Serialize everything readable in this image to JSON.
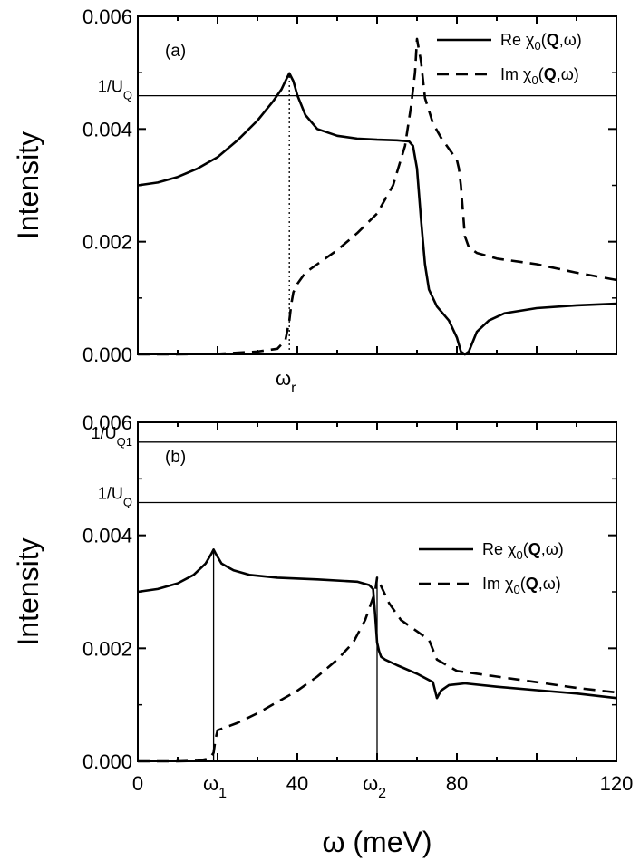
{
  "chart_data": [
    {
      "type": "line",
      "panel_label": "(a)",
      "xlabel": "",
      "ylabel": "Intensity",
      "xlim": [
        0,
        120
      ],
      "ylim": [
        0,
        0.006
      ],
      "yticks": [
        "0.000",
        "0.002",
        "0.004",
        "0.006"
      ],
      "legend": {
        "placement": "top-right",
        "entries": [
          "Re χ0(Q,ω)",
          "Im χ0(Q,ω)"
        ]
      },
      "hlines": [
        {
          "label": "1/U_Q",
          "label_text": "1/UQ",
          "y": 0.00459
        }
      ],
      "vlines": [
        {
          "x": 38,
          "style": "dotted",
          "y_to": 0.00499
        }
      ],
      "x_annotations": [
        {
          "text": "ωr",
          "x": 38
        }
      ],
      "series": [
        {
          "name": "Re χ0(Q,ω)",
          "style": "solid",
          "x": [
            0,
            5,
            10,
            15,
            20,
            25,
            30,
            34,
            36,
            37,
            38,
            39,
            40,
            42,
            45,
            50,
            55,
            60,
            65,
            68,
            69,
            70,
            71,
            72,
            73,
            75,
            78,
            80,
            81,
            82,
            83,
            85,
            88,
            92,
            100,
            110,
            120
          ],
          "y": [
            0.003,
            0.00305,
            0.00315,
            0.0033,
            0.0035,
            0.0038,
            0.00415,
            0.0045,
            0.0047,
            0.00485,
            0.00499,
            0.00485,
            0.0046,
            0.00425,
            0.004,
            0.00388,
            0.00383,
            0.00381,
            0.0038,
            0.00378,
            0.0037,
            0.0033,
            0.0024,
            0.0016,
            0.00115,
            0.00085,
            0.0006,
            0.0003,
            5e-05,
            0.0,
            5e-05,
            0.0004,
            0.0006,
            0.00073,
            0.00082,
            0.00087,
            0.0009
          ]
        },
        {
          "name": "Im χ0(Q,ω)",
          "style": "dashed",
          "x": [
            0,
            10,
            20,
            30,
            35,
            37,
            38,
            38.5,
            39,
            40,
            42,
            45,
            50,
            55,
            60,
            64,
            67,
            68.5,
            69.5,
            70,
            71,
            72,
            74,
            76,
            78,
            80,
            80.5,
            81,
            82,
            83,
            85,
            90,
            100,
            110,
            120
          ],
          "y": [
            0.0,
            0.0,
            1e-05,
            5e-05,
            0.0001,
            0.00025,
            0.0006,
            0.0009,
            0.0011,
            0.00125,
            0.00145,
            0.0016,
            0.00185,
            0.00215,
            0.0025,
            0.003,
            0.0037,
            0.0044,
            0.005,
            0.0056,
            0.0052,
            0.00455,
            0.0041,
            0.00385,
            0.00365,
            0.00345,
            0.0033,
            0.003,
            0.0021,
            0.0019,
            0.0018,
            0.0017,
            0.0016,
            0.00145,
            0.00132
          ]
        }
      ]
    },
    {
      "type": "line",
      "panel_label": "(b)",
      "xlabel": "ω (meV)",
      "ylabel": "Intensity",
      "xlim": [
        0,
        120
      ],
      "ylim": [
        0,
        0.006
      ],
      "yticks": [
        "0.000",
        "0.002",
        "0.004",
        "0.006"
      ],
      "xticks": [
        {
          "text": "0",
          "x": 0
        },
        {
          "text": "ω1",
          "x": 20
        },
        {
          "text": "40",
          "x": 40
        },
        {
          "text": "ω2",
          "x": 60
        },
        {
          "text": "80",
          "x": 80
        },
        {
          "text": "120",
          "x": 120
        }
      ],
      "legend": {
        "placement": "center-right",
        "entries": [
          "Re χ0(Q,ω)",
          "Im χ0(Q,ω)"
        ]
      },
      "hlines": [
        {
          "label": "1/U_Q1",
          "label_text": "1/UQ1",
          "y": 0.00565
        },
        {
          "label": "1/U_Q",
          "label_text": "1/UQ",
          "y": 0.00458
        }
      ],
      "vlines": [
        {
          "x": 19,
          "y_to": 0.00375
        },
        {
          "x": 60,
          "y_to": 0.00325
        }
      ],
      "series": [
        {
          "name": "Re χ0(Q,ω)",
          "style": "solid",
          "x": [
            0,
            5,
            10,
            14,
            17,
            18.5,
            19,
            19.5,
            21,
            24,
            28,
            35,
            45,
            55,
            58,
            59,
            59.5,
            60,
            60.5,
            61,
            62,
            65,
            70,
            74,
            75,
            76,
            78,
            82,
            90,
            100,
            110,
            120
          ],
          "y": [
            0.003,
            0.00305,
            0.00315,
            0.0033,
            0.0035,
            0.00368,
            0.00375,
            0.00368,
            0.0035,
            0.00338,
            0.0033,
            0.00325,
            0.00322,
            0.00318,
            0.00312,
            0.00305,
            0.0026,
            0.0021,
            0.00195,
            0.00185,
            0.0018,
            0.0017,
            0.00155,
            0.0014,
            0.00112,
            0.00125,
            0.00135,
            0.00138,
            0.00132,
            0.00126,
            0.0012,
            0.00112
          ]
        },
        {
          "name": "Im χ0(Q,ω)",
          "style": "dashed",
          "x": [
            0,
            10,
            15,
            18,
            19,
            19.5,
            20,
            22,
            25,
            30,
            35,
            40,
            45,
            50,
            54,
            57,
            58.5,
            59.5,
            60,
            60.5,
            61,
            63,
            66,
            70,
            73,
            75,
            80,
            90,
            100,
            110,
            120
          ],
          "y": [
            0.0,
            0.0,
            1e-05,
            5e-05,
            0.00015,
            0.0004,
            0.00055,
            0.0006,
            0.00068,
            0.00085,
            0.00105,
            0.00125,
            0.0015,
            0.0018,
            0.0021,
            0.0025,
            0.0028,
            0.003,
            0.00325,
            0.0032,
            0.0031,
            0.0028,
            0.0025,
            0.0023,
            0.00215,
            0.0018,
            0.0016,
            0.0015,
            0.0014,
            0.0013,
            0.00122
          ]
        }
      ]
    }
  ]
}
